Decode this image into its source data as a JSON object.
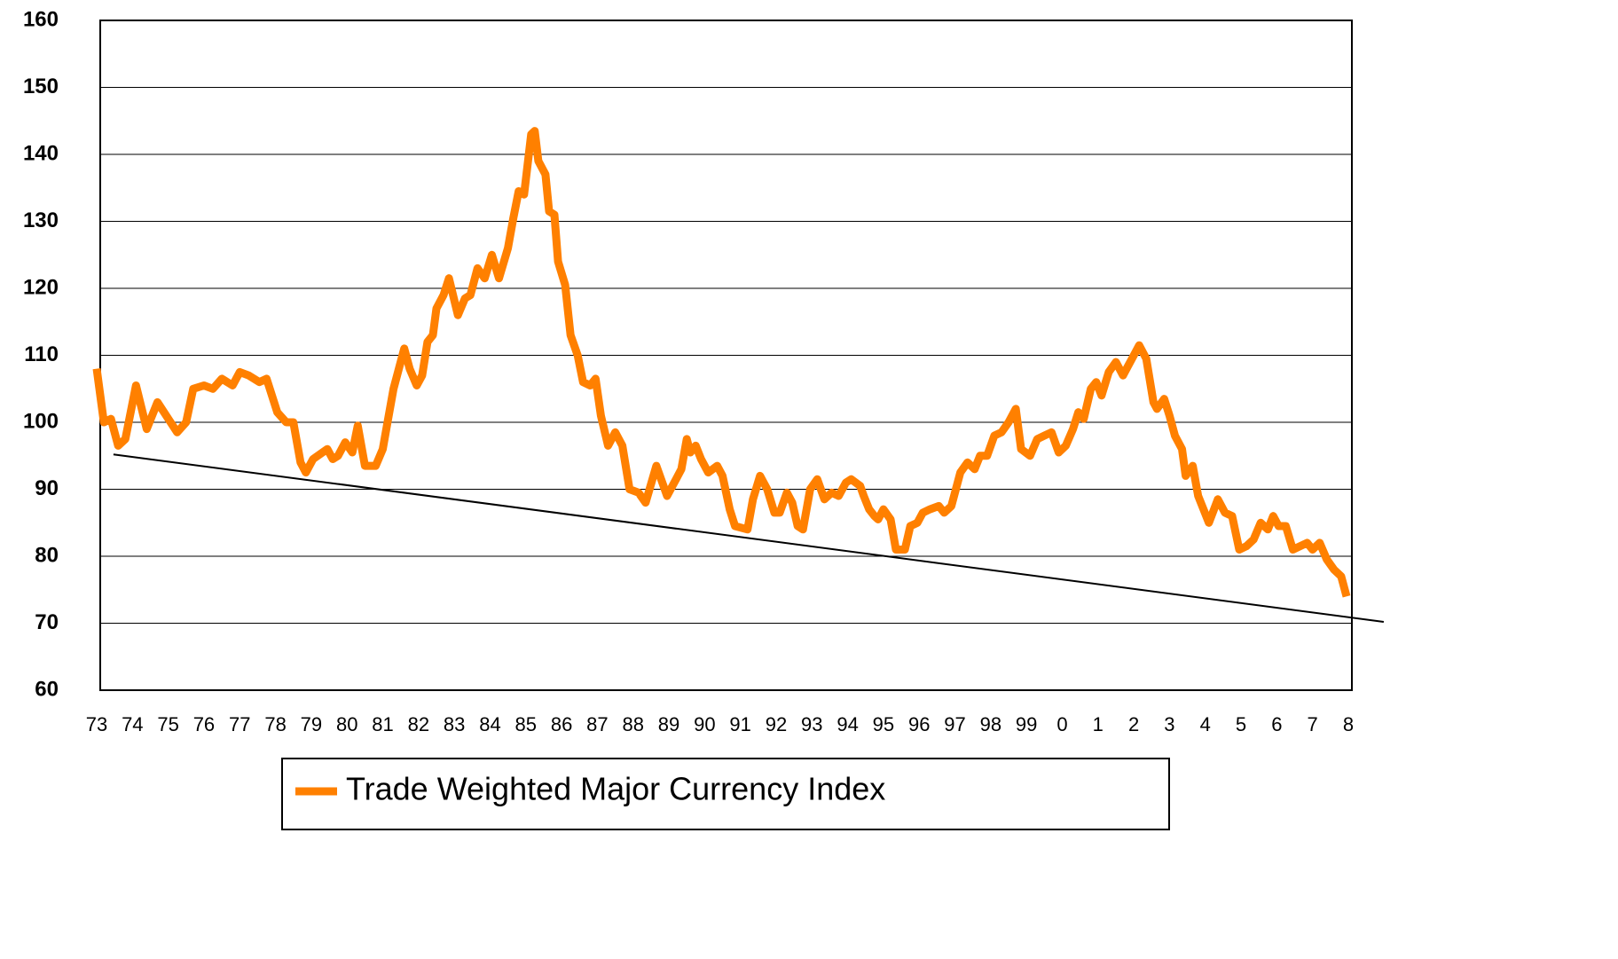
{
  "chart_data": {
    "type": "line",
    "xlim": [
      1973,
      2008
    ],
    "xticks": [
      {
        "value": 1973,
        "label": "73"
      },
      {
        "value": 1974,
        "label": "74"
      },
      {
        "value": 1975,
        "label": "75"
      },
      {
        "value": 1976,
        "label": "76"
      },
      {
        "value": 1977,
        "label": "77"
      },
      {
        "value": 1978,
        "label": "78"
      },
      {
        "value": 1979,
        "label": "79"
      },
      {
        "value": 1980,
        "label": "80"
      },
      {
        "value": 1981,
        "label": "81"
      },
      {
        "value": 1982,
        "label": "82"
      },
      {
        "value": 1983,
        "label": "83"
      },
      {
        "value": 1984,
        "label": "84"
      },
      {
        "value": 1985,
        "label": "85"
      },
      {
        "value": 1986,
        "label": "86"
      },
      {
        "value": 1987,
        "label": "87"
      },
      {
        "value": 1988,
        "label": "88"
      },
      {
        "value": 1989,
        "label": "89"
      },
      {
        "value": 1990,
        "label": "90"
      },
      {
        "value": 1991,
        "label": "91"
      },
      {
        "value": 1992,
        "label": "92"
      },
      {
        "value": 1993,
        "label": "93"
      },
      {
        "value": 1994,
        "label": "94"
      },
      {
        "value": 1995,
        "label": "95"
      },
      {
        "value": 1996,
        "label": "96"
      },
      {
        "value": 1997,
        "label": "97"
      },
      {
        "value": 1998,
        "label": "98"
      },
      {
        "value": 1999,
        "label": "99"
      },
      {
        "value": 2000,
        "label": "0"
      },
      {
        "value": 2001,
        "label": "1"
      },
      {
        "value": 2002,
        "label": "2"
      },
      {
        "value": 2003,
        "label": "3"
      },
      {
        "value": 2004,
        "label": "4"
      },
      {
        "value": 2005,
        "label": "5"
      },
      {
        "value": 2006,
        "label": "6"
      },
      {
        "value": 2007,
        "label": "7"
      },
      {
        "value": 2008,
        "label": "8"
      }
    ],
    "ylim": [
      60,
      160
    ],
    "yticks": [
      60,
      70,
      80,
      90,
      100,
      110,
      120,
      130,
      140,
      150,
      160
    ],
    "grid": true,
    "x": [
      1973.0,
      1973.2,
      1973.4,
      1973.6,
      1973.8,
      1974.1,
      1974.4,
      1974.7,
      1975.25,
      1975.5,
      1975.7,
      1976.0,
      1976.25,
      1976.5,
      1976.8,
      1977.0,
      1977.25,
      1977.55,
      1977.75,
      1978.05,
      1978.3,
      1978.5,
      1978.7,
      1978.85,
      1979.05,
      1979.45,
      1979.6,
      1979.75,
      1979.95,
      1980.15,
      1980.3,
      1980.5,
      1980.8,
      1981.0,
      1981.1,
      1981.3,
      1981.6,
      1981.75,
      1981.95,
      1982.1,
      1982.25,
      1982.4,
      1982.5,
      1982.7,
      1982.85,
      1983.1,
      1983.3,
      1983.45,
      1983.65,
      1983.85,
      1984.05,
      1984.25,
      1984.5,
      1984.65,
      1984.8,
      1984.95,
      1985.15,
      1985.25,
      1985.35,
      1985.55,
      1985.65,
      1985.8,
      1985.9,
      1986.1,
      1986.25,
      1986.45,
      1986.6,
      1986.8,
      1986.95,
      1987.1,
      1987.3,
      1987.5,
      1987.7,
      1987.9,
      1988.15,
      1988.35,
      1988.65,
      1988.95,
      1989.2,
      1989.35,
      1989.5,
      1989.6,
      1989.75,
      1989.9,
      1990.1,
      1990.35,
      1990.5,
      1990.7,
      1990.85,
      1991.2,
      1991.35,
      1991.55,
      1991.75,
      1991.95,
      1992.1,
      1992.3,
      1992.45,
      1992.6,
      1992.75,
      1992.95,
      1993.15,
      1993.35,
      1993.55,
      1993.75,
      1993.95,
      1994.1,
      1994.35,
      1994.45,
      1994.6,
      1994.75,
      1994.85,
      1995.0,
      1995.2,
      1995.35,
      1995.6,
      1995.75,
      1995.95,
      1996.1,
      1996.3,
      1996.55,
      1996.7,
      1996.9,
      1997.15,
      1997.35,
      1997.55,
      1997.7,
      1997.9,
      1998.1,
      1998.3,
      1998.5,
      1998.7,
      1998.85,
      1999.1,
      1999.3,
      1999.5,
      1999.7,
      1999.9,
      2000.1,
      2000.3,
      2000.45,
      2000.6,
      2000.8,
      2000.95,
      2001.1,
      2001.3,
      2001.5,
      2001.7,
      2001.85,
      2002.15,
      2002.35,
      2002.55,
      2002.65,
      2002.85,
      2003.0,
      2003.15,
      2003.35,
      2003.45,
      2003.65,
      2003.8,
      2004.1,
      2004.35,
      2004.55,
      2004.75,
      2004.95,
      2005.15,
      2005.35,
      2005.55,
      2005.75,
      2005.9,
      2006.05,
      2006.25,
      2006.45,
      2006.65,
      2006.85,
      2007.0,
      2007.2,
      2007.4,
      2007.6,
      2007.8,
      2007.95
    ],
    "series": [
      {
        "name": "Trade Weighted Major Currency Index",
        "color": "#ff8000",
        "values": [
          108,
          100,
          100.5,
          96.5,
          97.5,
          105.5,
          99,
          103,
          98.5,
          100,
          105,
          105.5,
          105,
          106.5,
          105.5,
          107.5,
          107,
          106,
          106.5,
          101.5,
          100,
          100,
          94,
          92.5,
          94.5,
          96,
          94.5,
          95,
          97,
          95.5,
          99.5,
          93.5,
          93.5,
          96,
          99,
          105,
          111,
          108,
          105.5,
          107,
          112,
          113,
          117,
          119,
          121.5,
          116,
          118.5,
          119,
          123,
          121.5,
          125,
          121.5,
          126,
          130.5,
          134.5,
          134,
          143,
          143.5,
          139,
          137,
          131.5,
          131,
          124,
          120.5,
          113,
          110,
          106,
          105.5,
          106.5,
          101,
          96.5,
          98.5,
          96.5,
          90,
          89.5,
          88,
          93.5,
          89,
          91.5,
          93,
          97.5,
          95.5,
          96.5,
          94.5,
          92.5,
          93.5,
          92,
          87,
          84.5,
          84,
          88.5,
          92,
          90,
          86.5,
          86.5,
          89.5,
          88,
          84.5,
          84,
          90,
          91.5,
          88.5,
          89.5,
          89,
          91,
          91.5,
          90.5,
          89,
          87,
          86,
          85.5,
          87,
          85.5,
          81,
          81,
          84.5,
          85,
          86.5,
          87,
          87.5,
          86.5,
          87.5,
          92.5,
          94,
          93,
          95,
          95,
          98,
          98.5,
          100,
          102,
          96,
          95,
          97.5,
          98,
          98.5,
          95.5,
          96.5,
          99,
          101.5,
          100.5,
          105,
          106,
          104,
          107.5,
          109,
          107,
          108.5,
          111.5,
          109.5,
          103,
          102,
          103.5,
          101,
          98,
          96,
          92,
          93.5,
          89,
          85,
          88.5,
          86.5,
          86,
          81,
          81.5,
          82.5,
          85,
          84,
          86,
          84.5,
          84.5,
          81,
          81.5,
          82,
          81,
          82,
          79.5,
          78,
          77,
          74
        ]
      }
    ],
    "trend_line": {
      "x": [
        1973.47,
        2008.99
      ],
      "values": [
        95.2,
        70.2
      ],
      "color": "#000000"
    }
  }
}
